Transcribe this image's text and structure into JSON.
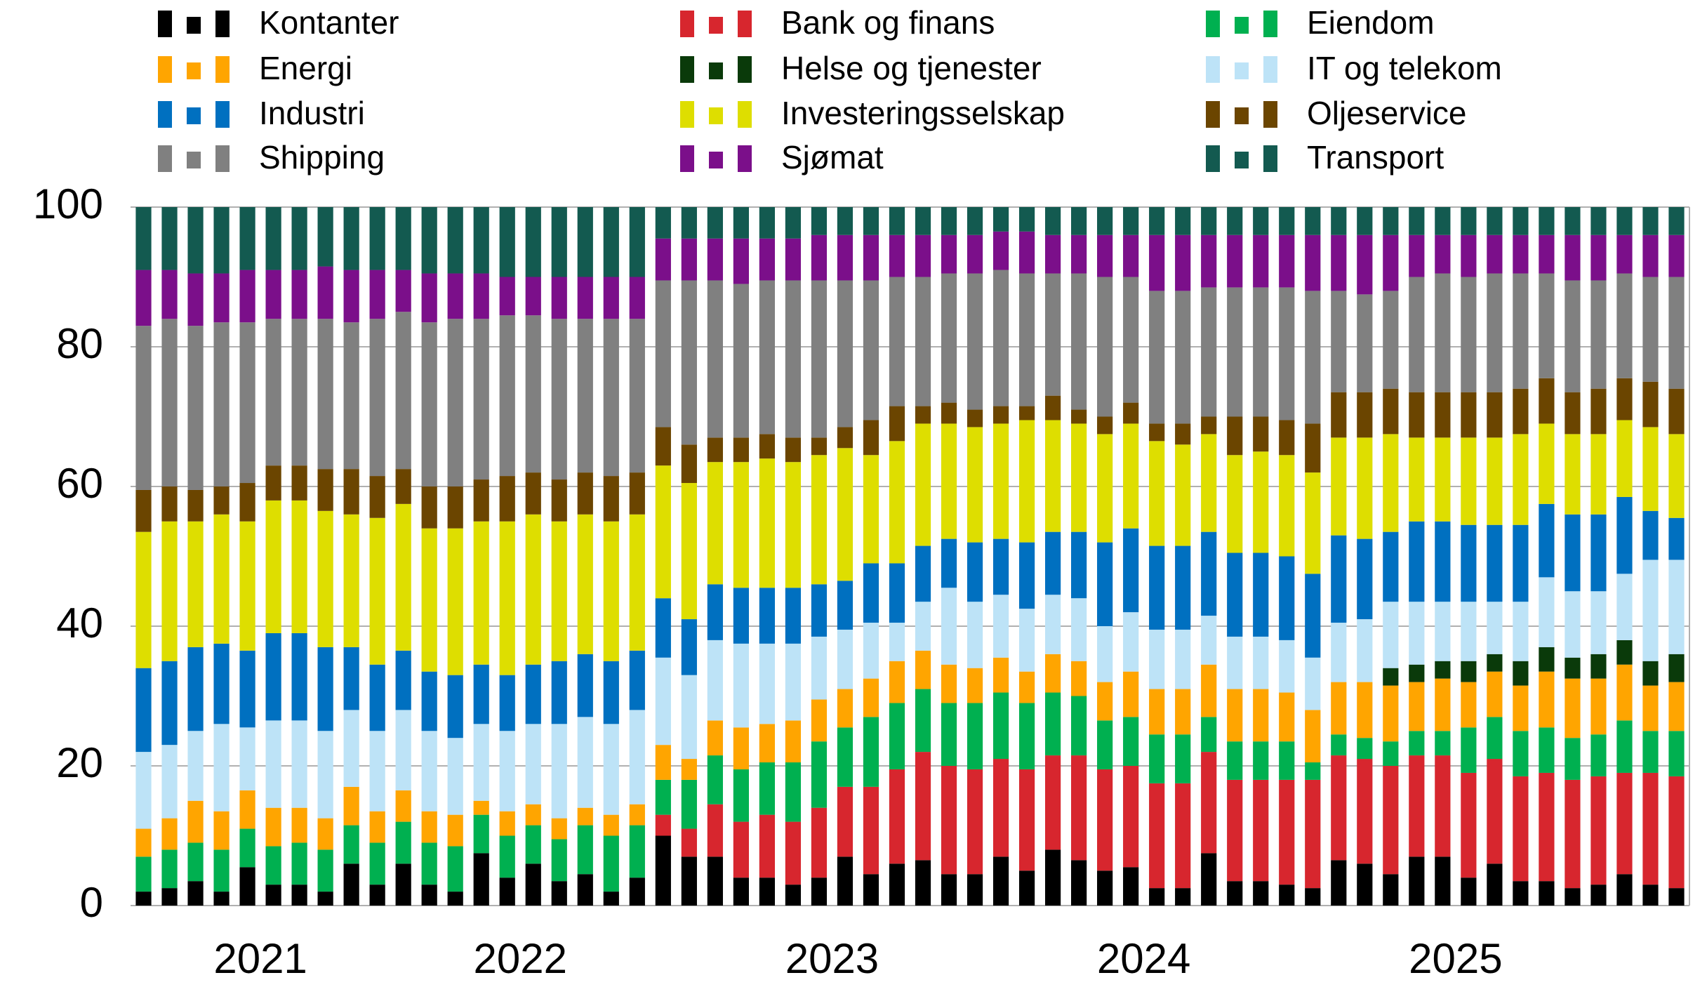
{
  "chart_data": {
    "type": "stacked_bar",
    "categories": [
      null,
      null,
      null,
      null,
      "2021",
      null,
      null,
      null,
      null,
      null,
      null,
      null,
      null,
      null,
      "2022",
      null,
      null,
      null,
      null,
      null,
      null,
      null,
      null,
      null,
      null,
      null,
      "2023",
      null,
      null,
      null,
      null,
      null,
      null,
      null,
      null,
      null,
      null,
      null,
      "2024",
      null,
      null,
      null,
      null,
      null,
      null,
      null,
      null,
      null,
      null,
      null,
      "2025",
      null,
      null,
      null,
      null,
      null,
      null,
      null,
      null,
      null
    ],
    "ylim": [
      0,
      100
    ],
    "yticks": [
      0,
      20,
      40,
      60,
      80,
      100
    ],
    "grid": true,
    "series": [
      {
        "name": "Kontanter",
        "color": "#000000",
        "values": [
          2,
          2.5,
          3.5,
          2,
          5.5,
          3,
          3,
          2,
          6,
          3,
          6,
          3,
          2,
          7.5,
          4,
          6,
          3.5,
          4.5,
          2,
          4,
          10,
          7,
          7,
          4,
          4,
          3,
          4,
          7,
          4.5,
          6,
          6.5,
          4.5,
          4.5,
          7,
          5,
          8,
          6.5,
          5,
          5.5,
          2.5,
          2.5,
          7.5,
          3.5,
          3.5,
          3,
          2.5,
          6.5,
          6,
          4.5,
          7,
          7,
          4,
          6,
          3.5,
          3.5,
          2.5,
          3,
          4.5,
          3,
          2.5
        ]
      },
      {
        "name": "Bank og finans",
        "color": "#d7262e",
        "values": [
          0,
          0,
          0,
          0,
          0,
          0,
          0,
          0,
          0,
          0,
          0,
          0,
          0,
          0,
          0,
          0,
          0,
          0,
          0,
          0,
          3,
          4,
          7.5,
          8,
          9,
          9,
          10,
          10,
          12.5,
          13.5,
          15.5,
          15.5,
          15,
          14,
          14.5,
          13.5,
          15,
          14.5,
          14.5,
          15,
          15,
          14.5,
          14.5,
          14.5,
          15,
          15.5,
          15,
          15,
          15.5,
          14.5,
          14.5,
          15,
          15,
          15,
          15.5,
          15.5,
          15.5,
          14.5,
          16,
          16
        ]
      },
      {
        "name": "Eiendom",
        "color": "#00b050",
        "values": [
          5,
          5.5,
          5.5,
          6,
          5.5,
          5.5,
          6,
          6,
          5.5,
          6,
          6,
          6,
          6.5,
          5.5,
          6,
          5.5,
          6,
          7,
          8,
          7.5,
          5,
          7,
          7,
          7.5,
          7.5,
          8.5,
          9.5,
          8.5,
          10,
          9.5,
          9,
          9,
          9.5,
          9.5,
          9.5,
          9,
          8.5,
          7,
          7,
          7,
          7,
          5,
          5.5,
          5.5,
          5.5,
          2.5,
          3,
          3,
          3.5,
          3.5,
          3.5,
          6.5,
          6,
          6.5,
          6.5,
          6,
          6,
          7.5,
          6,
          6.5
        ]
      },
      {
        "name": "Energi",
        "color": "#ffa500",
        "values": [
          4,
          4.5,
          6,
          5.5,
          5.5,
          5.5,
          5,
          4.5,
          5.5,
          4.5,
          4.5,
          4.5,
          4.5,
          2,
          3.5,
          3,
          3,
          2.5,
          3,
          3,
          5,
          3,
          5,
          6,
          5.5,
          6,
          6,
          5.5,
          5.5,
          6,
          5.5,
          5.5,
          5,
          5,
          4.5,
          5.5,
          5,
          5.5,
          6.5,
          6.5,
          6.5,
          7.5,
          7.5,
          7.5,
          7,
          7.5,
          7.5,
          8,
          8,
          7,
          7.5,
          6.5,
          6.5,
          6.5,
          8,
          8.5,
          8,
          8,
          6.5,
          7
        ]
      },
      {
        "name": "Helse og tjenester",
        "color": "#0a3a0a",
        "values": [
          0,
          0,
          0,
          0,
          0,
          0,
          0,
          0,
          0,
          0,
          0,
          0,
          0,
          0,
          0,
          0,
          0,
          0,
          0,
          0,
          0,
          0,
          0,
          0,
          0,
          0,
          0,
          0,
          0,
          0,
          0,
          0,
          0,
          0,
          0,
          0,
          0,
          0,
          0,
          0,
          0,
          0,
          0,
          0,
          0,
          0,
          0,
          0,
          2.5,
          2.5,
          2.5,
          3,
          2.5,
          3.5,
          3.5,
          3,
          3.5,
          3.5,
          3.5,
          4
        ]
      },
      {
        "name": "IT og telekom",
        "color": "#bde3f7",
        "values": [
          11,
          10.5,
          10,
          12.5,
          9,
          12.5,
          12.5,
          12.5,
          11,
          11.5,
          11.5,
          11.5,
          11,
          11,
          11.5,
          11.5,
          13.5,
          13,
          13,
          13.5,
          12.5,
          12,
          11.5,
          12,
          11.5,
          11,
          9,
          8.5,
          8,
          5.5,
          7,
          11,
          9.5,
          9,
          9,
          8.5,
          9,
          8,
          8.5,
          8.5,
          8.5,
          7,
          7.5,
          7.5,
          7.5,
          7.5,
          8.5,
          9,
          9.5,
          9,
          8.5,
          8.5,
          7.5,
          8.5,
          10,
          9.5,
          9,
          9.5,
          14.5,
          13.5
        ]
      },
      {
        "name": "Industri",
        "color": "#0070c0",
        "values": [
          12,
          12,
          12,
          11.5,
          11,
          12.5,
          12.5,
          12,
          9,
          9.5,
          8.5,
          8.5,
          9,
          8.5,
          8,
          8.5,
          9,
          9,
          9,
          8.5,
          8.5,
          8,
          8,
          8,
          8,
          8,
          7.5,
          7,
          8.5,
          8.5,
          8,
          7,
          8.5,
          8,
          9.5,
          9,
          9.5,
          12,
          12,
          12,
          12,
          12,
          12,
          12,
          12,
          12,
          12.5,
          11.5,
          10,
          11.5,
          11.5,
          11,
          11,
          11,
          10.5,
          11,
          11,
          11,
          7,
          6
        ]
      },
      {
        "name": "Investeringsselskap",
        "color": "#dede00",
        "values": [
          19.5,
          20,
          18,
          18.5,
          18.5,
          19,
          19,
          19.5,
          19,
          21,
          21,
          20.5,
          21,
          20.5,
          22,
          21.5,
          20,
          20,
          20,
          19.5,
          19,
          19.5,
          17.5,
          18,
          18.5,
          18,
          18.5,
          19,
          15.5,
          17.5,
          17.5,
          16.5,
          16.5,
          16.5,
          17.5,
          16,
          15.5,
          15.5,
          15,
          15,
          14.5,
          14,
          14,
          14.5,
          14.5,
          14.5,
          14,
          14.5,
          14,
          12,
          12,
          12.5,
          12.5,
          13,
          11.5,
          11.5,
          11.5,
          11,
          12,
          12
        ]
      },
      {
        "name": "Oljeservice",
        "color": "#6b4500",
        "values": [
          6,
          5,
          4.5,
          4,
          5.5,
          5,
          5,
          6,
          6.5,
          6,
          5,
          6,
          6,
          6,
          6.5,
          6,
          6,
          6,
          6.5,
          6,
          5.5,
          5.5,
          3.5,
          3.5,
          3.5,
          3.5,
          2.5,
          3,
          5,
          5,
          2.5,
          3,
          2.5,
          2.5,
          2,
          3.5,
          2,
          2.5,
          3,
          2.5,
          3,
          2.5,
          5.5,
          5,
          5,
          7,
          6.5,
          6.5,
          6.5,
          6.5,
          6.5,
          6.5,
          6.5,
          6.5,
          6.5,
          6,
          6.5,
          6,
          6.5,
          6.5
        ]
      },
      {
        "name": "Shipping",
        "color": "#808080",
        "values": [
          23.5,
          24,
          23.5,
          23.5,
          23,
          21,
          21,
          21.5,
          21,
          22.5,
          22.5,
          23.5,
          24,
          23,
          23,
          22.5,
          23,
          22,
          22.5,
          22,
          21,
          23.5,
          22.5,
          22,
          22,
          22.5,
          22.5,
          21,
          20,
          18.5,
          18.5,
          18.5,
          19.5,
          19.5,
          19,
          17.5,
          19.5,
          20,
          18,
          19,
          19,
          18.5,
          18.5,
          18.5,
          19,
          19,
          14.5,
          14,
          14,
          16.5,
          17,
          16.5,
          17,
          16.5,
          15,
          16,
          15.5,
          15,
          15,
          16
        ]
      },
      {
        "name": "Sjømat",
        "color": "#7b0f8a",
        "values": [
          8,
          7,
          7.5,
          7,
          7.5,
          7,
          7,
          7.5,
          7.5,
          7,
          6,
          7,
          6.5,
          6.5,
          5.5,
          5.5,
          6,
          6,
          6,
          6,
          6,
          6,
          6,
          6.5,
          6,
          6,
          6.5,
          6.5,
          6.5,
          6,
          6,
          5.5,
          5.5,
          5.5,
          6,
          5.5,
          5.5,
          6,
          6,
          8,
          8,
          7.5,
          7.5,
          7.5,
          7.5,
          8,
          8,
          8.5,
          8,
          6,
          5.5,
          6,
          5.5,
          5.5,
          5.5,
          6.5,
          6.5,
          5.5,
          6,
          6
        ]
      },
      {
        "name": "Transport",
        "color": "#135a50",
        "values": [
          9,
          9,
          9.5,
          9.5,
          9,
          9,
          9,
          8.5,
          9,
          9,
          9,
          9.5,
          9.5,
          9.5,
          10,
          10,
          10,
          10,
          10,
          10,
          4.5,
          4.5,
          4.5,
          4.5,
          4.5,
          4.5,
          4,
          4,
          4,
          4,
          4,
          4,
          4,
          3.5,
          3.5,
          4,
          4,
          4,
          4,
          4,
          4,
          4,
          4,
          4,
          4,
          4,
          4,
          4,
          4,
          4,
          4,
          4,
          4,
          4,
          4,
          4,
          4,
          4,
          4,
          4
        ]
      }
    ]
  }
}
